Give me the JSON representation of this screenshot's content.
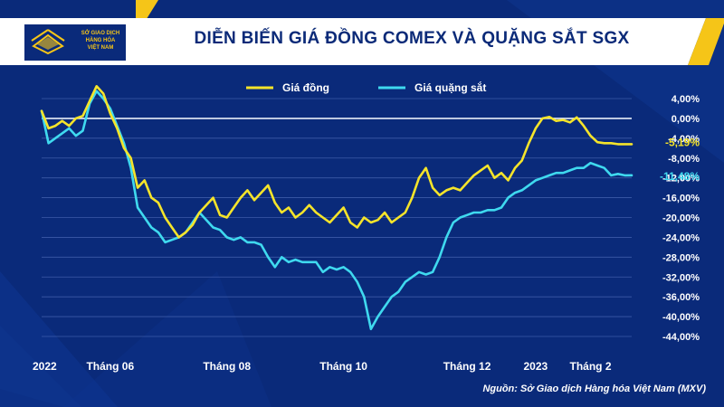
{
  "header": {
    "title": "DIỄN BIẾN GIÁ ĐỒNG COMEX VÀ QUẶNG SẮT SGX",
    "logo_lines": [
      "SỞ GIAO DỊCH",
      "HÀNG HÓA",
      "VIỆT NAM"
    ]
  },
  "footer": {
    "source": "Nguồn: Sở Giao dịch Hàng hóa Việt Nam (MXV)"
  },
  "colors": {
    "background": "#0a2a7a",
    "copper": "#f5e42a",
    "iron_ore": "#3fd9ef",
    "accent_yellow": "#f5c518"
  },
  "chart_data": {
    "type": "line",
    "title": "DIỄN BIẾN GIÁ ĐỒNG COMEX VÀ QUẶNG SẮT SGX",
    "legend_placement": "top-center",
    "grid": "horizontal",
    "ylim": [
      -44,
      4
    ],
    "y_ticks": [
      4,
      0,
      -4,
      -8,
      -12,
      -16,
      -20,
      -24,
      -28,
      -32,
      -36,
      -40,
      -44
    ],
    "y_tick_labels": [
      "4,00%",
      "0,00%",
      "-4,00%",
      "-8,00%",
      "-12,00%",
      "-16,00%",
      "-20,00%",
      "-24,00%",
      "-28,00%",
      "-32,00%",
      "-36,00%",
      "-40,00%",
      "-44,00%"
    ],
    "x_labels": [
      {
        "label": "2022",
        "pos": 0
      },
      {
        "label": "Tháng 06",
        "pos": 10
      },
      {
        "label": "Tháng 08",
        "pos": 27
      },
      {
        "label": "Tháng 10",
        "pos": 44
      },
      {
        "label": "Tháng 12",
        "pos": 62
      },
      {
        "label": "2023",
        "pos": 72
      },
      {
        "label": "Tháng 2",
        "pos": 80
      }
    ],
    "x_range": [
      0,
      86
    ],
    "end_labels": [
      {
        "text": "-5,19%",
        "value": -5.19,
        "series": 0
      },
      {
        "text": "-11,48%",
        "value": -11.48,
        "series": 1
      }
    ],
    "series": [
      {
        "name": "Giá đồng",
        "color": "#f5e42a",
        "x": [
          0,
          1,
          2,
          3,
          4,
          5,
          6,
          7,
          8,
          9,
          10,
          11,
          12,
          13,
          14,
          15,
          16,
          17,
          18,
          19,
          20,
          21,
          22,
          23,
          24,
          25,
          26,
          27,
          28,
          29,
          30,
          31,
          32,
          33,
          34,
          35,
          36,
          37,
          38,
          39,
          40,
          41,
          42,
          43,
          44,
          45,
          46,
          47,
          48,
          49,
          50,
          51,
          52,
          53,
          54,
          55,
          56,
          57,
          58,
          59,
          60,
          61,
          62,
          63,
          64,
          65,
          66,
          67,
          68,
          69,
          70,
          71,
          72,
          73,
          74,
          75,
          76,
          77,
          78,
          79,
          80,
          81,
          82,
          83,
          84,
          85,
          86
        ],
        "values": [
          1.5,
          -2,
          -1.5,
          -0.5,
          -1.5,
          0,
          0.5,
          3.5,
          6.5,
          5,
          1,
          -2,
          -6,
          -8,
          -14,
          -12.5,
          -16,
          -17,
          -20,
          -22,
          -24,
          -23,
          -21.5,
          -19,
          -17.5,
          -16,
          -19.5,
          -20,
          -18,
          -16,
          -14.5,
          -16.5,
          -15,
          -13.5,
          -17,
          -19,
          -18,
          -20,
          -19,
          -17.5,
          -19,
          -20,
          -21,
          -19.5,
          -18,
          -21,
          -22,
          -20,
          -21,
          -20.5,
          -19,
          -21,
          -20,
          -19,
          -16,
          -12,
          -10,
          -14,
          -15.5,
          -14.5,
          -14,
          -14.5,
          -13,
          -11.5,
          -10.5,
          -9.5,
          -12,
          -11,
          -12.5,
          -10,
          -8.5,
          -5,
          -2,
          0,
          0.3,
          -0.5,
          -0.3,
          -0.8,
          0.2,
          -1.5,
          -3.5,
          -4.8,
          -5,
          -5,
          -5.2,
          -5.2,
          -5.19
        ]
      },
      {
        "name": "Giá quặng sắt",
        "color": "#3fd9ef",
        "x": [
          0,
          1,
          2,
          3,
          4,
          5,
          6,
          7,
          8,
          9,
          10,
          11,
          12,
          13,
          14,
          15,
          16,
          17,
          18,
          19,
          20,
          21,
          22,
          23,
          24,
          25,
          26,
          27,
          28,
          29,
          30,
          31,
          32,
          33,
          34,
          35,
          36,
          37,
          38,
          39,
          40,
          41,
          42,
          43,
          44,
          45,
          46,
          47,
          48,
          49,
          50,
          51,
          52,
          53,
          54,
          55,
          56,
          57,
          58,
          59,
          60,
          61,
          62,
          63,
          64,
          65,
          66,
          67,
          68,
          69,
          70,
          71,
          72,
          73,
          74,
          75,
          76,
          77,
          78,
          79,
          80,
          81,
          82,
          83,
          84,
          85,
          86
        ],
        "values": [
          1.5,
          -5,
          -4,
          -3,
          -2,
          -3.5,
          -2.5,
          3,
          5.5,
          4,
          2,
          -1.5,
          -5,
          -10,
          -18,
          -20,
          -22,
          -23,
          -25,
          -24.5,
          -24,
          -23,
          -21,
          -19,
          -20.5,
          -22,
          -22.5,
          -24,
          -24.5,
          -24,
          -25,
          -25,
          -25.5,
          -28,
          -30,
          -28,
          -29,
          -28.5,
          -29,
          -29,
          -29,
          -31,
          -30,
          -30.5,
          -30,
          -31,
          -33,
          -36,
          -42.5,
          -40,
          -38,
          -36,
          -35,
          -33,
          -32,
          -31,
          -31.5,
          -31,
          -28,
          -24,
          -21,
          -20,
          -19.5,
          -19,
          -19,
          -18.5,
          -18.5,
          -18,
          -16,
          -15,
          -14.5,
          -13.5,
          -12.5,
          -12,
          -11.5,
          -11,
          -11,
          -10.5,
          -10,
          -10,
          -9,
          -9.5,
          -10,
          -11.5,
          -11.2,
          -11.5,
          -11.48
        ]
      }
    ]
  }
}
